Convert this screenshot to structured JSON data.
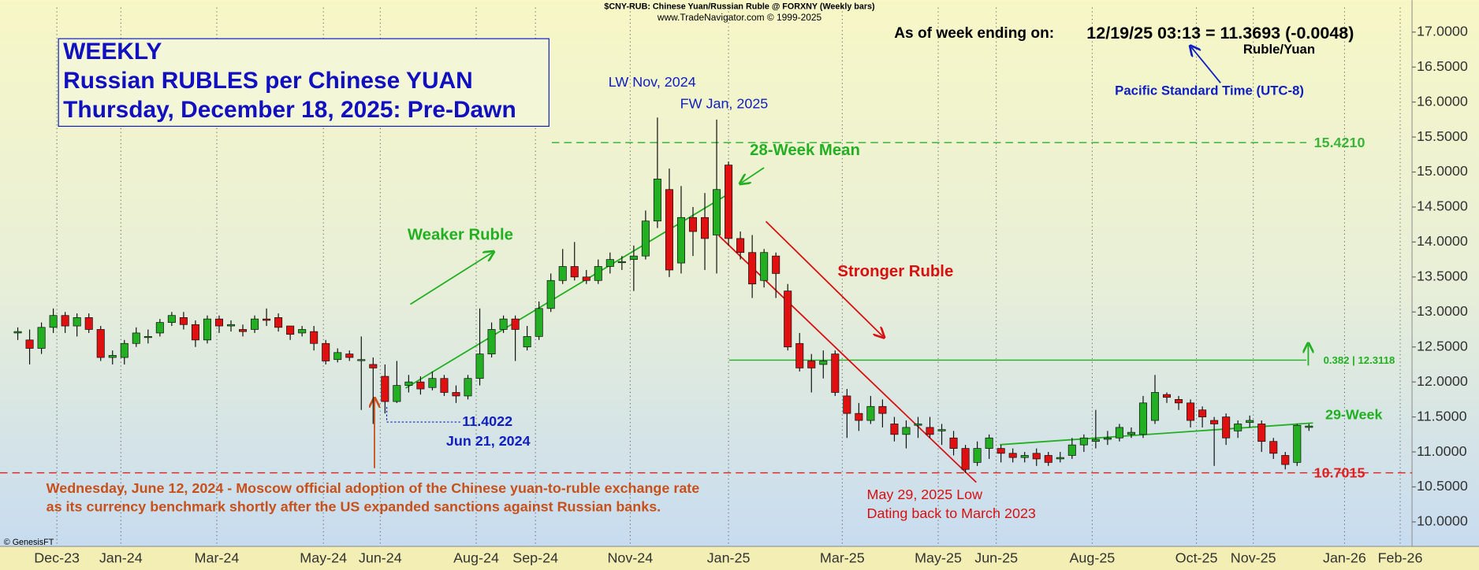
{
  "chart_data": {
    "type": "candlestick",
    "header": "$CNY-RUB:  Chinese Yuan/Russian Ruble @ FORXNY  (Weekly bars)",
    "source": "www.TradeNavigator.com © 1999-2025",
    "title_lines": [
      "WEEKLY",
      "Russian RUBLES per Chinese YUAN",
      "Thursday, December 18, 2025: Pre-Dawn"
    ],
    "as_of_label": "As of week ending on:",
    "as_of_value": "12/19/25 03:13 = 11.3693 (-0.0048)",
    "unit_label": "Ruble/Yuan",
    "timezone_label": "Pacific Standard Time (UTC-8)",
    "annotations": {
      "lw": "LW Nov, 2024",
      "fw": "FW Jan, 2025",
      "mean28": "28-Week Mean",
      "weaker": "Weaker Ruble",
      "stronger": "Stronger Ruble",
      "low_value": "11.4022",
      "low_date": "Jun 21, 2024",
      "adoption": [
        "Wednesday, June 12, 2024 - Moscow official adoption of the Chinese yuan-to-ruble exchange rate",
        "as its currency benchmark shortly after the US expanded sanctions against Russian banks."
      ],
      "may_low": [
        "May 29, 2025 Low",
        "Dating back to March 2023"
      ],
      "mean29": "29-Week",
      "copyright": "© GenesisFT"
    },
    "up_color": "#22b022",
    "down_color": "#e01010",
    "open": [
      12.7,
      12.6,
      12.48,
      12.78,
      12.95,
      12.8,
      12.92,
      12.75,
      12.35,
      12.35,
      12.55,
      12.65,
      12.7,
      12.85,
      12.92,
      12.82,
      12.6,
      12.9,
      12.8,
      12.75,
      12.75,
      12.9,
      12.92,
      12.8,
      12.7,
      12.72,
      12.55,
      12.32,
      12.4,
      12.32,
      12.25,
      12.08,
      11.72,
      11.95,
      12.0,
      11.92,
      12.05,
      11.85,
      11.8,
      12.05,
      12.4,
      12.75,
      12.9,
      12.5,
      12.65,
      13.05,
      13.45,
      13.65,
      13.5,
      13.45,
      13.65,
      13.72,
      13.75,
      13.8,
      14.3,
      14.75,
      13.7,
      14.35,
      14.35,
      14.1,
      15.1,
      14.05,
      13.85,
      13.45,
      13.8,
      13.3,
      12.55,
      12.3,
      12.25,
      12.4,
      11.8,
      11.55,
      11.45,
      11.65,
      11.4,
      11.25,
      11.38,
      11.35,
      11.3,
      11.2,
      11.05,
      10.85,
      11.05,
      11.05,
      10.98,
      10.92,
      10.98,
      10.95,
      10.9,
      10.95,
      11.1,
      11.15,
      11.18,
      11.2,
      11.25,
      11.25,
      11.45,
      11.82,
      11.75,
      11.7,
      11.6,
      11.45,
      11.5,
      11.3,
      11.42,
      11.4,
      11.15,
      10.95,
      10.85,
      11.35
    ],
    "high": [
      12.78,
      12.75,
      12.85,
      13.05,
      13.0,
      12.98,
      12.98,
      12.8,
      12.45,
      12.6,
      12.78,
      12.75,
      12.9,
      13.0,
      13.0,
      12.88,
      12.95,
      12.95,
      12.88,
      12.82,
      12.95,
      13.05,
      12.98,
      12.8,
      12.8,
      12.8,
      12.6,
      12.48,
      12.45,
      12.65,
      12.35,
      12.25,
      12.3,
      12.1,
      12.08,
      12.15,
      12.1,
      11.95,
      12.1,
      13.05,
      12.85,
      12.95,
      12.95,
      12.8,
      13.15,
      13.55,
      13.9,
      14.0,
      13.6,
      13.75,
      13.85,
      13.8,
      13.95,
      14.45,
      15.78,
      15.05,
      14.8,
      14.5,
      14.7,
      15.75,
      15.15,
      14.15,
      14.1,
      13.9,
      13.85,
      13.4,
      12.7,
      12.4,
      12.45,
      12.45,
      11.9,
      11.7,
      11.8,
      11.75,
      11.5,
      11.45,
      11.5,
      11.5,
      11.4,
      11.3,
      11.1,
      11.15,
      11.25,
      11.1,
      11.05,
      11.0,
      11.05,
      11.0,
      11.0,
      11.2,
      11.25,
      11.6,
      11.3,
      11.4,
      11.35,
      11.8,
      12.1,
      11.85,
      11.8,
      11.75,
      11.65,
      11.5,
      11.55,
      11.45,
      11.52,
      11.45,
      11.2,
      11.0,
      11.4,
      11.4
    ],
    "low": [
      12.6,
      12.25,
      12.4,
      12.7,
      12.7,
      12.65,
      12.7,
      12.3,
      12.25,
      12.25,
      12.5,
      12.55,
      12.65,
      12.8,
      12.75,
      12.5,
      12.55,
      12.7,
      12.72,
      12.65,
      12.7,
      12.8,
      12.72,
      12.6,
      12.65,
      12.45,
      12.25,
      12.28,
      12.3,
      11.6,
      11.4,
      11.55,
      11.7,
      11.85,
      11.82,
      11.88,
      11.8,
      11.7,
      11.75,
      11.95,
      12.35,
      12.7,
      12.3,
      12.45,
      12.6,
      13.0,
      13.4,
      13.45,
      13.4,
      13.4,
      13.55,
      13.6,
      13.3,
      13.75,
      14.2,
      13.5,
      13.55,
      13.8,
      13.6,
      13.55,
      13.95,
      13.75,
      13.2,
      13.35,
      13.2,
      12.45,
      12.15,
      11.85,
      12.05,
      11.8,
      11.2,
      11.3,
      11.4,
      11.35,
      11.15,
      11.05,
      11.2,
      11.2,
      11.1,
      10.95,
      10.7,
      10.8,
      10.9,
      10.85,
      10.85,
      10.85,
      10.8,
      10.8,
      10.85,
      10.9,
      11.0,
      11.05,
      11.1,
      11.15,
      11.2,
      11.2,
      11.4,
      11.7,
      11.6,
      11.35,
      11.35,
      10.8,
      11.1,
      11.2,
      11.35,
      11.0,
      10.9,
      10.75,
      10.8,
      11.3
    ],
    "close": [
      12.72,
      12.48,
      12.78,
      12.95,
      12.8,
      12.92,
      12.75,
      12.35,
      12.38,
      12.55,
      12.7,
      12.65,
      12.85,
      12.95,
      12.82,
      12.6,
      12.9,
      12.8,
      12.82,
      12.72,
      12.9,
      12.88,
      12.78,
      12.68,
      12.75,
      12.55,
      12.3,
      12.42,
      12.35,
      12.32,
      12.2,
      11.72,
      11.95,
      12.0,
      11.9,
      12.05,
      11.85,
      11.8,
      12.05,
      12.4,
      12.75,
      12.9,
      12.75,
      12.65,
      13.05,
      13.45,
      13.65,
      13.5,
      13.45,
      13.65,
      13.75,
      13.72,
      13.8,
      14.3,
      14.9,
      13.6,
      14.35,
      14.15,
      14.05,
      14.75,
      14.05,
      13.85,
      13.4,
      13.85,
      13.55,
      12.5,
      12.2,
      12.2,
      12.3,
      11.85,
      11.55,
      11.45,
      11.65,
      11.55,
      11.25,
      11.35,
      11.4,
      11.25,
      11.32,
      11.05,
      10.75,
      11.05,
      11.2,
      10.98,
      10.92,
      10.95,
      10.9,
      10.85,
      10.92,
      11.1,
      11.2,
      11.18,
      11.2,
      11.35,
      11.28,
      11.7,
      11.85,
      11.78,
      11.7,
      11.45,
      11.5,
      11.4,
      11.2,
      11.4,
      11.45,
      11.15,
      10.98,
      10.82,
      11.38,
      11.37
    ],
    "levels": [
      {
        "value": 15.421,
        "label": "15.4210",
        "color": "#3cb43c",
        "dash": true
      },
      {
        "value": 12.3118,
        "label": "0.382 | 12.3118",
        "color": "#22b022",
        "dash": false
      },
      {
        "value": 10.7015,
        "label": "10.7015",
        "color": "#e02020",
        "dash": true
      }
    ],
    "xlim": [
      -1.5,
      117.7
    ],
    "xticks": [
      {
        "value": 3.3,
        "label": "Dec-23"
      },
      {
        "value": 8.7,
        "label": "Jan-24"
      },
      {
        "value": 16.8,
        "label": "Mar-24"
      },
      {
        "value": 25.8,
        "label": "May-24"
      },
      {
        "value": 30.6,
        "label": "Jun-24"
      },
      {
        "value": 38.7,
        "label": "Aug-24"
      },
      {
        "value": 43.7,
        "label": "Sep-24"
      },
      {
        "value": 51.7,
        "label": "Nov-24"
      },
      {
        "value": 60.0,
        "label": "Jan-25"
      },
      {
        "value": 69.6,
        "label": "Mar-25"
      },
      {
        "value": 77.7,
        "label": "May-25"
      },
      {
        "value": 82.6,
        "label": "Jun-25"
      },
      {
        "value": 90.7,
        "label": "Aug-25"
      },
      {
        "value": 99.5,
        "label": "Oct-25"
      },
      {
        "value": 104.3,
        "label": "Nov-25"
      },
      {
        "value": 112.0,
        "label": "Jan-26"
      },
      {
        "value": 116.7,
        "label": "Feb-26"
      }
    ],
    "ylim": [
      9.65,
      17.35
    ],
    "yticks": [
      {
        "value": 10,
        "label": "10.0000"
      },
      {
        "value": 10.5,
        "label": "10.5000"
      },
      {
        "value": 11,
        "label": "11.0000"
      },
      {
        "value": 11.5,
        "label": "11.5000"
      },
      {
        "value": 12,
        "label": "12.0000"
      },
      {
        "value": 12.5,
        "label": "12.5000"
      },
      {
        "value": 13,
        "label": "13.0000"
      },
      {
        "value": 13.5,
        "label": "13.5000"
      },
      {
        "value": 14,
        "label": "14.0000"
      },
      {
        "value": 14.5,
        "label": "14.5000"
      },
      {
        "value": 15,
        "label": "15.0000"
      },
      {
        "value": 15.5,
        "label": "15.5000"
      },
      {
        "value": 16,
        "label": "16.0000"
      },
      {
        "value": 16.5,
        "label": "16.5000"
      },
      {
        "value": 17,
        "label": "17.0000"
      }
    ],
    "grid": true
  }
}
